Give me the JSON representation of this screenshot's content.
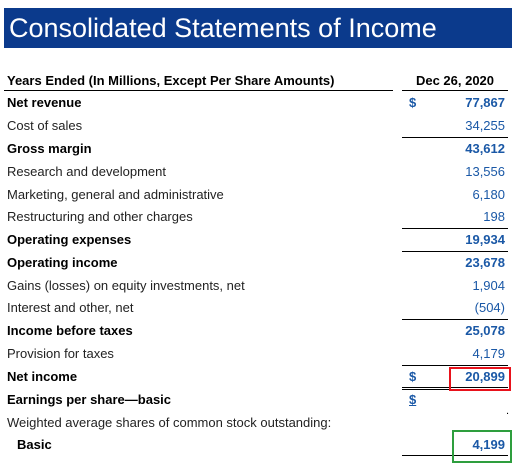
{
  "title": "Consolidated Statements of Income",
  "header": {
    "label": "Years Ended (In Millions, Except Per Share Amounts)",
    "period": "Dec 26, 2020"
  },
  "rows": [
    {
      "label": "Net revenue",
      "dollar": "$",
      "value": "77,867"
    },
    {
      "label": "Cost of sales",
      "value": "34,255"
    },
    {
      "label": "Gross margin",
      "value": "43,612"
    },
    {
      "label": "Research and development",
      "value": "13,556"
    },
    {
      "label": "Marketing, general and administrative",
      "value": "6,180"
    },
    {
      "label": "Restructuring and other charges",
      "value": "198"
    },
    {
      "label": "Operating expenses",
      "value": "19,934"
    },
    {
      "label": "Operating income",
      "value": "23,678"
    },
    {
      "label": "Gains (losses) on equity investments, net",
      "value": "1,904"
    },
    {
      "label": "Interest and other, net",
      "value": "(504)"
    },
    {
      "label": "Income before taxes",
      "value": "25,078"
    },
    {
      "label": "Provision for taxes",
      "value": "4,179"
    },
    {
      "label": "Net income",
      "dollar": "$",
      "value": "20,899"
    },
    {
      "label": "Earnings per share—basic",
      "dollar": "$",
      "value": ""
    },
    {
      "label": "Weighted average shares of common stock outstanding:",
      "value": ""
    },
    {
      "label": "Basic",
      "value": "4,199"
    }
  ],
  "highlight_colors": {
    "net_income_box": "#e8121b",
    "basic_shares_box": "#2e9e3e"
  },
  "colors": {
    "title_background": "#0b3a8c",
    "value_text": "#1a58a6"
  }
}
